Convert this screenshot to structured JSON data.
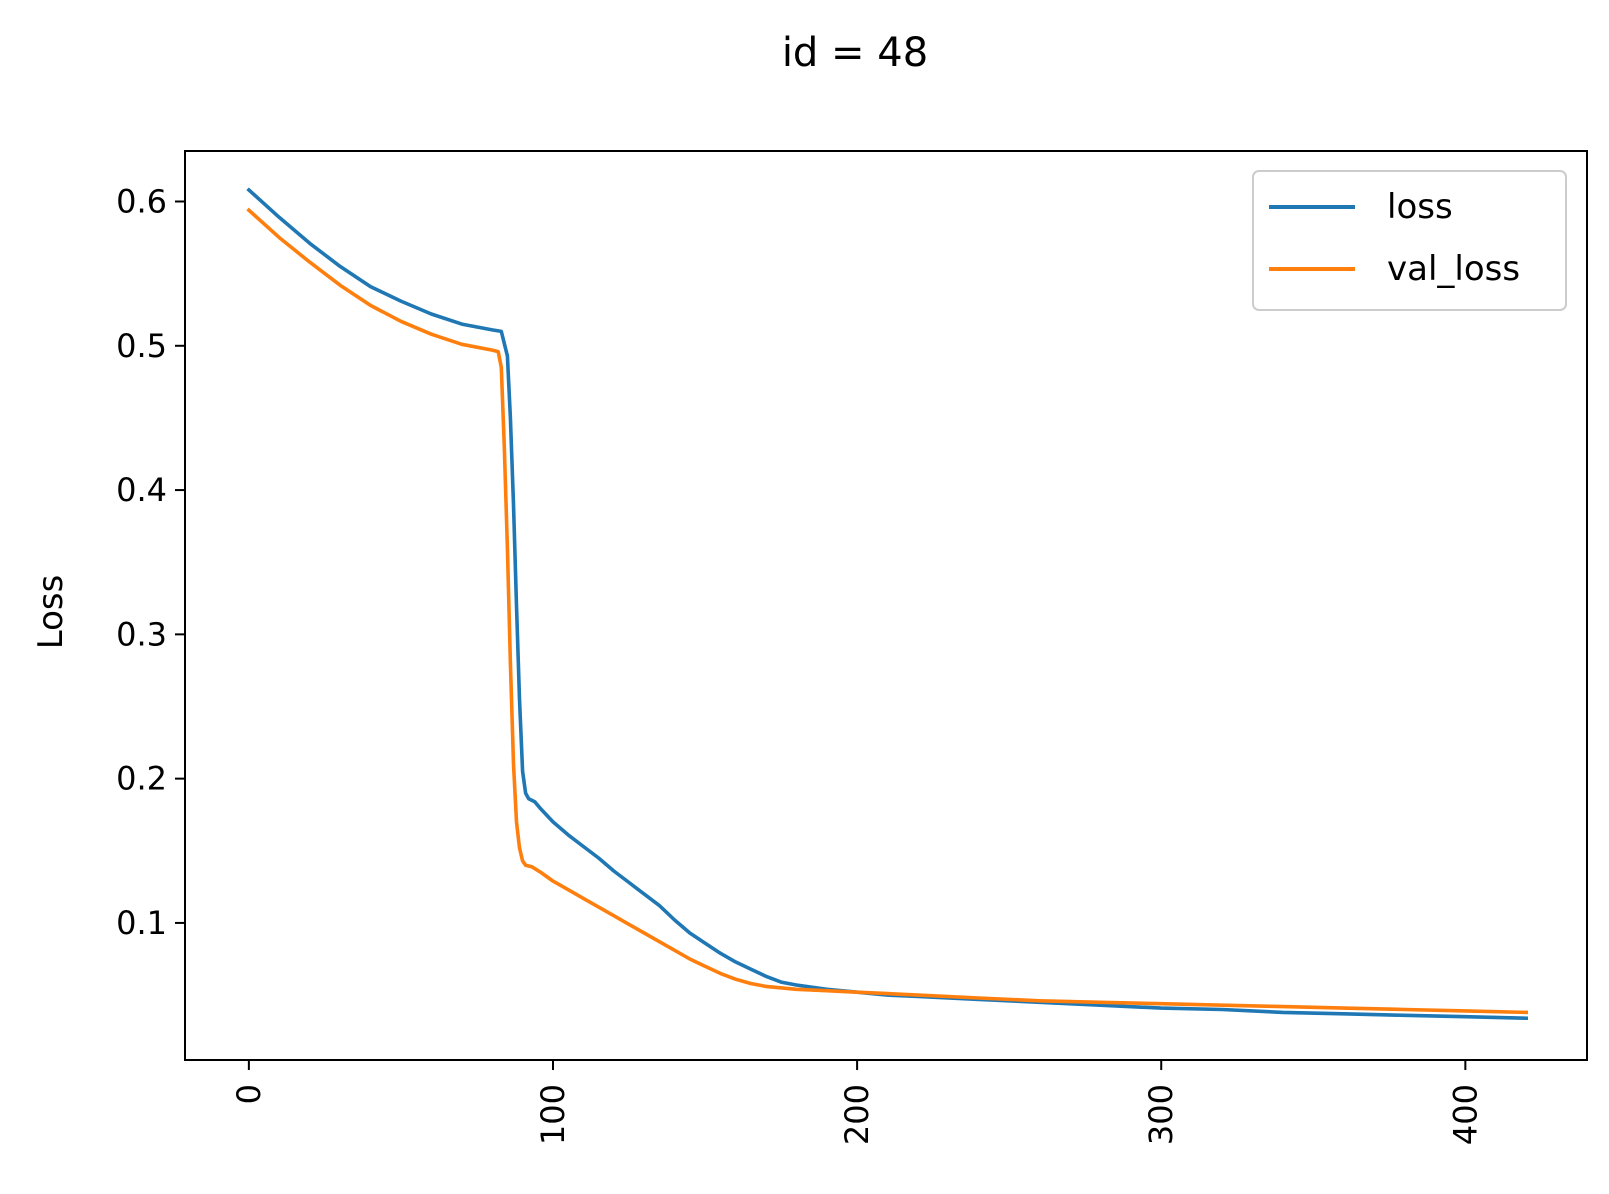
{
  "chart_data": {
    "type": "line",
    "title": "id = 48",
    "xlabel": "",
    "ylabel": "Loss",
    "xlim": [
      -21,
      440
    ],
    "ylim": [
      0.005,
      0.635
    ],
    "x_ticks": [
      0,
      100,
      200,
      300,
      400
    ],
    "y_ticks": [
      0.1,
      0.2,
      0.3,
      0.4,
      0.5,
      0.6
    ],
    "x_tick_labels": [
      "0",
      "100",
      "200",
      "300",
      "400"
    ],
    "y_tick_labels": [
      "0.1",
      "0.2",
      "0.3",
      "0.4",
      "0.5",
      "0.6"
    ],
    "grid": false,
    "legend_position": "top-right",
    "series": [
      {
        "name": "loss",
        "color": "#1f77b4",
        "points": [
          [
            0,
            0.608
          ],
          [
            10,
            0.589
          ],
          [
            20,
            0.571
          ],
          [
            30,
            0.555
          ],
          [
            40,
            0.541
          ],
          [
            50,
            0.531
          ],
          [
            60,
            0.522
          ],
          [
            70,
            0.515
          ],
          [
            80,
            0.511
          ],
          [
            83,
            0.51
          ],
          [
            85,
            0.493
          ],
          [
            86,
            0.45
          ],
          [
            87,
            0.39
          ],
          [
            88,
            0.32
          ],
          [
            89,
            0.255
          ],
          [
            90,
            0.205
          ],
          [
            91,
            0.19
          ],
          [
            92,
            0.186
          ],
          [
            94,
            0.184
          ],
          [
            96,
            0.179
          ],
          [
            100,
            0.17
          ],
          [
            105,
            0.161
          ],
          [
            110,
            0.153
          ],
          [
            115,
            0.145
          ],
          [
            120,
            0.136
          ],
          [
            125,
            0.128
          ],
          [
            130,
            0.12
          ],
          [
            135,
            0.112
          ],
          [
            140,
            0.102
          ],
          [
            145,
            0.093
          ],
          [
            150,
            0.086
          ],
          [
            155,
            0.079
          ],
          [
            160,
            0.073
          ],
          [
            165,
            0.068
          ],
          [
            170,
            0.063
          ],
          [
            175,
            0.059
          ],
          [
            180,
            0.057
          ],
          [
            190,
            0.054
          ],
          [
            200,
            0.052
          ],
          [
            210,
            0.05
          ],
          [
            220,
            0.049
          ],
          [
            240,
            0.047
          ],
          [
            260,
            0.045
          ],
          [
            280,
            0.043
          ],
          [
            300,
            0.041
          ],
          [
            320,
            0.04
          ],
          [
            340,
            0.038
          ],
          [
            360,
            0.037
          ],
          [
            380,
            0.036
          ],
          [
            400,
            0.035
          ],
          [
            420,
            0.034
          ]
        ]
      },
      {
        "name": "val_loss",
        "color": "#ff7f0e",
        "points": [
          [
            0,
            0.594
          ],
          [
            10,
            0.575
          ],
          [
            20,
            0.558
          ],
          [
            30,
            0.542
          ],
          [
            40,
            0.528
          ],
          [
            50,
            0.517
          ],
          [
            60,
            0.508
          ],
          [
            70,
            0.501
          ],
          [
            80,
            0.497
          ],
          [
            82,
            0.496
          ],
          [
            83,
            0.485
          ],
          [
            84,
            0.43
          ],
          [
            85,
            0.36
          ],
          [
            86,
            0.28
          ],
          [
            87,
            0.21
          ],
          [
            88,
            0.17
          ],
          [
            89,
            0.152
          ],
          [
            90,
            0.143
          ],
          [
            91,
            0.14
          ],
          [
            93,
            0.139
          ],
          [
            96,
            0.135
          ],
          [
            100,
            0.129
          ],
          [
            105,
            0.123
          ],
          [
            110,
            0.117
          ],
          [
            115,
            0.111
          ],
          [
            120,
            0.105
          ],
          [
            125,
            0.099
          ],
          [
            130,
            0.093
          ],
          [
            135,
            0.087
          ],
          [
            140,
            0.081
          ],
          [
            145,
            0.075
          ],
          [
            150,
            0.07
          ],
          [
            155,
            0.065
          ],
          [
            160,
            0.061
          ],
          [
            165,
            0.058
          ],
          [
            170,
            0.056
          ],
          [
            180,
            0.054
          ],
          [
            190,
            0.053
          ],
          [
            200,
            0.052
          ],
          [
            210,
            0.051
          ],
          [
            220,
            0.05
          ],
          [
            240,
            0.048
          ],
          [
            260,
            0.046
          ],
          [
            280,
            0.045
          ],
          [
            300,
            0.044
          ],
          [
            320,
            0.043
          ],
          [
            340,
            0.042
          ],
          [
            360,
            0.041
          ],
          [
            380,
            0.04
          ],
          [
            400,
            0.039
          ],
          [
            420,
            0.038
          ]
        ]
      }
    ]
  }
}
